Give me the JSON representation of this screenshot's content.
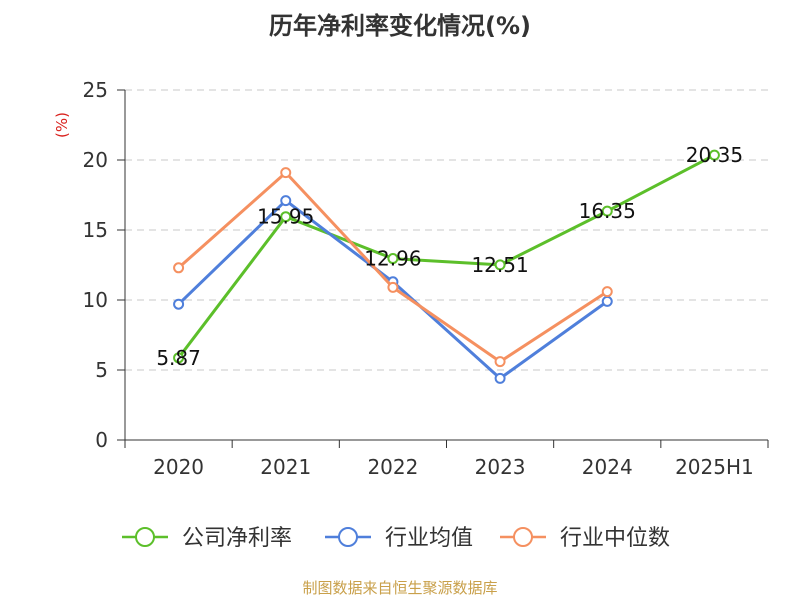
{
  "chart_data": {
    "type": "line",
    "title": "历年净利率变化情况(%)",
    "xlabel": "",
    "ylabel": "(%)",
    "categories": [
      "2020",
      "2021",
      "2022",
      "2023",
      "2024",
      "2025H1"
    ],
    "ylim": [
      0,
      25
    ],
    "yticks": [
      0,
      5,
      10,
      15,
      20,
      25
    ],
    "grid": true,
    "legend_position": "bottom",
    "series": [
      {
        "name": "公司净利率",
        "color": "#5cbf2a",
        "show_labels": true,
        "values": [
          5.87,
          15.95,
          12.96,
          12.51,
          16.35,
          20.35
        ]
      },
      {
        "name": "行业均值",
        "color": "#4f7fdb",
        "show_labels": false,
        "values": [
          9.7,
          17.1,
          11.3,
          4.4,
          9.9,
          null
        ]
      },
      {
        "name": "行业中位数",
        "color": "#f59060",
        "show_labels": false,
        "values": [
          12.3,
          19.1,
          10.9,
          5.6,
          10.6,
          null
        ]
      }
    ]
  },
  "footer": "制图数据来自恒生聚源数据库"
}
